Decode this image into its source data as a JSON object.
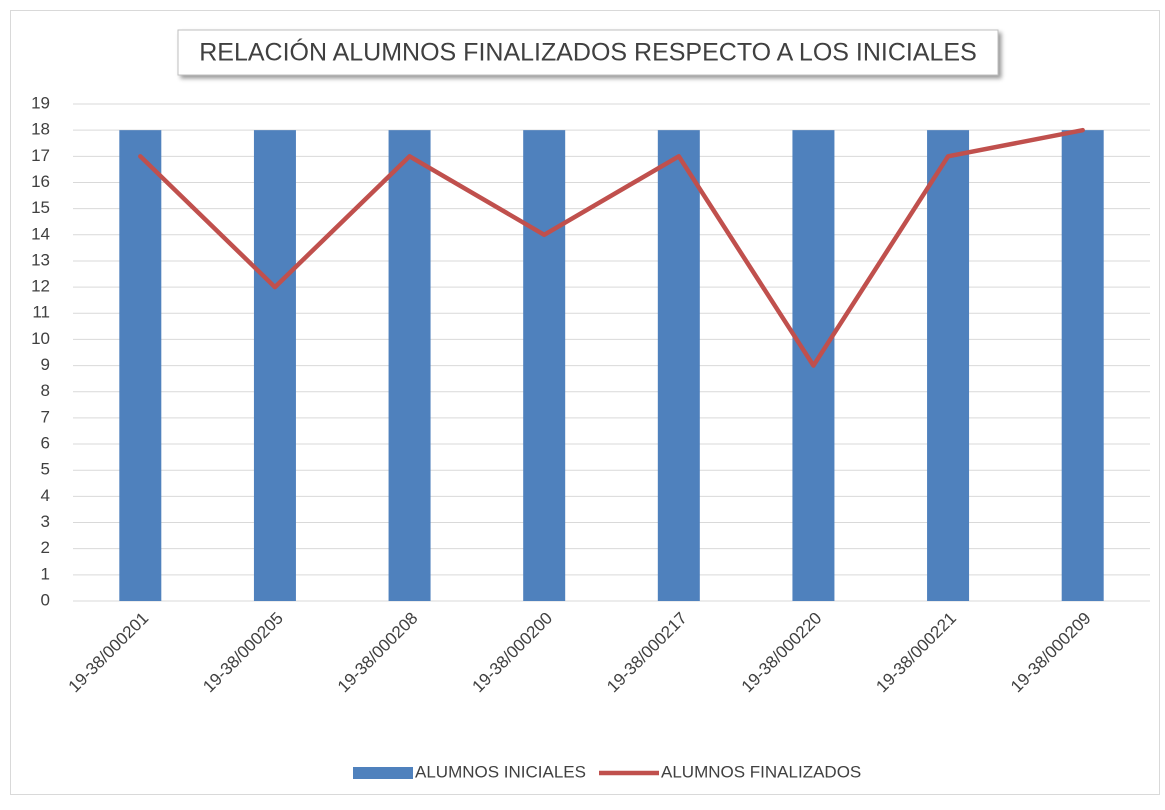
{
  "chart_data": {
    "type": "bar",
    "title": "RELACIÓN ALUMNOS FINALIZADOS RESPECTO A LOS INICIALES",
    "categories": [
      "19-38/000201",
      "19-38/000205",
      "19-38/000208",
      "19-38/000200",
      "19-38/000217",
      "19-38/000220",
      "19-38/000221",
      "19-38/000209"
    ],
    "series": [
      {
        "name": "ALUMNOS INICIALES",
        "type": "bar",
        "color": "#4f81bd",
        "values": [
          18,
          18,
          18,
          18,
          18,
          18,
          18,
          18
        ]
      },
      {
        "name": "ALUMNOS FINALIZADOS",
        "type": "line",
        "color": "#c0504d",
        "values": [
          17,
          12,
          17,
          14,
          17,
          9,
          17,
          18
        ]
      }
    ],
    "ylim": [
      0,
      19
    ],
    "yticks": [
      0,
      1,
      2,
      3,
      4,
      5,
      6,
      7,
      8,
      9,
      10,
      11,
      12,
      13,
      14,
      15,
      16,
      17,
      18,
      19
    ],
    "grid": true,
    "legend": "bottom"
  }
}
